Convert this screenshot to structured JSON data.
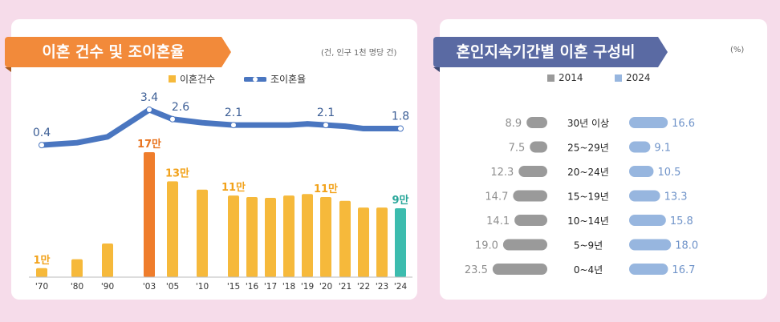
{
  "left": {
    "title": "이혼 건수 및 조이혼율",
    "unit": "(건, 인구 1천 명당 건)",
    "legend_bar": "이혼건수",
    "legend_line": "조이혼율"
  },
  "right": {
    "title": "혼인지속기간별 이혼 구성비",
    "unit": "(%)",
    "legend_a": "2014",
    "legend_b": "2024"
  },
  "colors": {
    "bar": "#f6b93b",
    "bar_2003": "#ef7d2c",
    "bar_2024": "#3cbcae",
    "line": "#4a76c0",
    "gray": "#9a9a9a",
    "blue": "#97b6df",
    "label_gray": "#8f8f8f",
    "label_blue": "#6f93c9"
  },
  "chart_data": [
    {
      "type": "bar+line",
      "categories": [
        "'70",
        "'80",
        "'90",
        "'03",
        "'05",
        "'10",
        "'15",
        "'16",
        "'17",
        "'18",
        "'19",
        "'20",
        "'21",
        "'22",
        "'23",
        "'24"
      ],
      "series": [
        {
          "name": "이혼건수",
          "type": "bar",
          "values": [
            12,
            24,
            45,
            167,
            128,
            117,
            109,
            107,
            106,
            109,
            111,
            107,
            102,
            93,
            93,
            92
          ]
        },
        {
          "name": "조이혼율",
          "type": "line",
          "values": [
            0.4,
            0.6,
            1.1,
            3.4,
            2.6,
            2.3,
            2.1,
            2.1,
            2.1,
            2.1,
            2.2,
            2.1,
            2.0,
            1.8,
            1.8,
            1.8
          ]
        }
      ],
      "bar_labels": [
        {
          "category": "'70",
          "text": "1만"
        },
        {
          "category": "'03",
          "text": "17만"
        },
        {
          "category": "'05",
          "text": "13만"
        },
        {
          "category": "'15",
          "text": "11만"
        },
        {
          "category": "'20",
          "text": "11만"
        },
        {
          "category": "'24",
          "text": "9만"
        }
      ],
      "line_labels": [
        {
          "category": "'70",
          "text": "0.4"
        },
        {
          "category": "'03",
          "text": "3.4"
        },
        {
          "category": "'05",
          "text": "2.6"
        },
        {
          "category": "'15",
          "text": "2.1"
        },
        {
          "category": "'20",
          "text": "2.1"
        },
        {
          "category": "'24",
          "text": "1.8"
        }
      ]
    },
    {
      "type": "bar",
      "orientation": "horizontal-diverging",
      "categories": [
        "30년 이상",
        "25~29년",
        "20~24년",
        "15~19년",
        "10~14년",
        "5~9년",
        "0~4년"
      ],
      "series": [
        {
          "name": "2014",
          "values": [
            8.9,
            7.5,
            12.3,
            14.7,
            14.1,
            19.0,
            23.5
          ]
        },
        {
          "name": "2024",
          "values": [
            16.6,
            9.1,
            10.5,
            13.3,
            15.8,
            18.0,
            16.7
          ]
        }
      ]
    }
  ]
}
